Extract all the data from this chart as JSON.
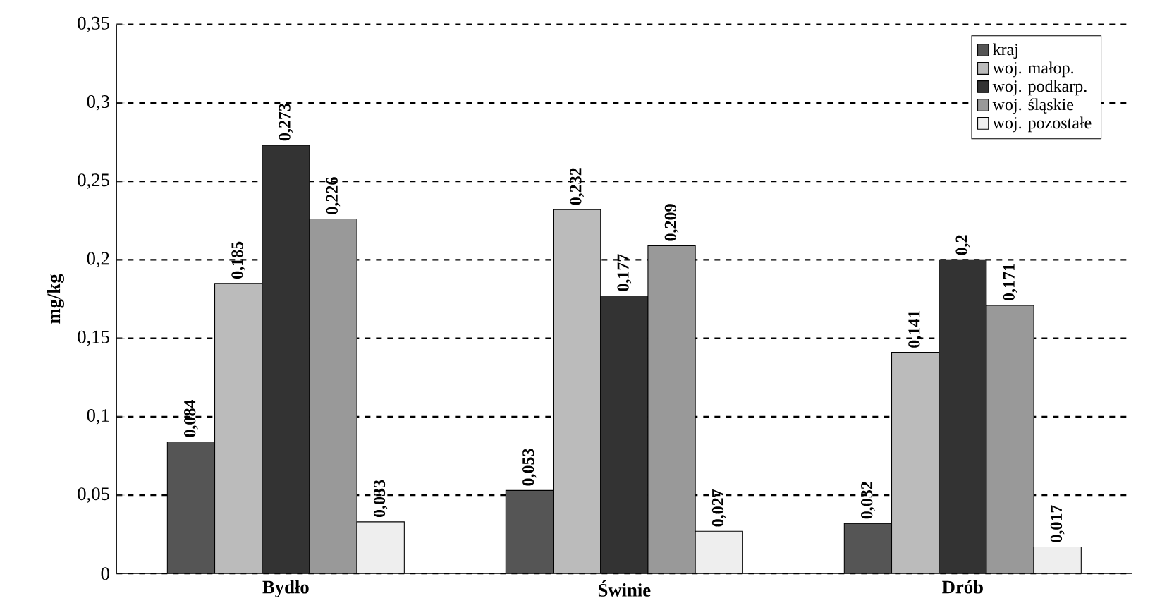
{
  "chart_data": {
    "type": "bar",
    "ylabel": "mg/kg",
    "categories": [
      "Bydło",
      "Świnie",
      "Drób"
    ],
    "series": [
      {
        "name": "kraj",
        "color": "#555555",
        "values": [
          0.084,
          0.053,
          0.032
        ],
        "value_labels": [
          "0,084",
          "0,053",
          "0,032"
        ]
      },
      {
        "name": "woj. małop.",
        "color": "#bbbbbb",
        "values": [
          0.185,
          0.232,
          0.141
        ],
        "value_labels": [
          "0,185",
          "0,232",
          "0,141"
        ]
      },
      {
        "name": "woj. podkarp.",
        "color": "#333333",
        "values": [
          0.273,
          0.177,
          0.2
        ],
        "value_labels": [
          "0,273",
          "0,177",
          "0,2"
        ]
      },
      {
        "name": "woj. śląskie",
        "color": "#999999",
        "values": [
          0.226,
          0.209,
          0.171
        ],
        "value_labels": [
          "0,226",
          "0,209",
          "0,171"
        ]
      },
      {
        "name": "woj. pozostałe",
        "color": "#eeeeee",
        "values": [
          0.033,
          0.027,
          0.017
        ],
        "value_labels": [
          "0,033",
          "0,027",
          "0,017"
        ]
      }
    ],
    "ylim": [
      0,
      0.35
    ],
    "yticks": [
      {
        "value": 0,
        "label": "0"
      },
      {
        "value": 0.05,
        "label": "0,05"
      },
      {
        "value": 0.1,
        "label": "0,1"
      },
      {
        "value": 0.15,
        "label": "0,15"
      },
      {
        "value": 0.2,
        "label": "0,2"
      },
      {
        "value": 0.25,
        "label": "0,25"
      },
      {
        "value": 0.3,
        "label": "0,3"
      },
      {
        "value": 0.35,
        "label": "0,35"
      }
    ],
    "grid": "y",
    "legend": "top right"
  }
}
